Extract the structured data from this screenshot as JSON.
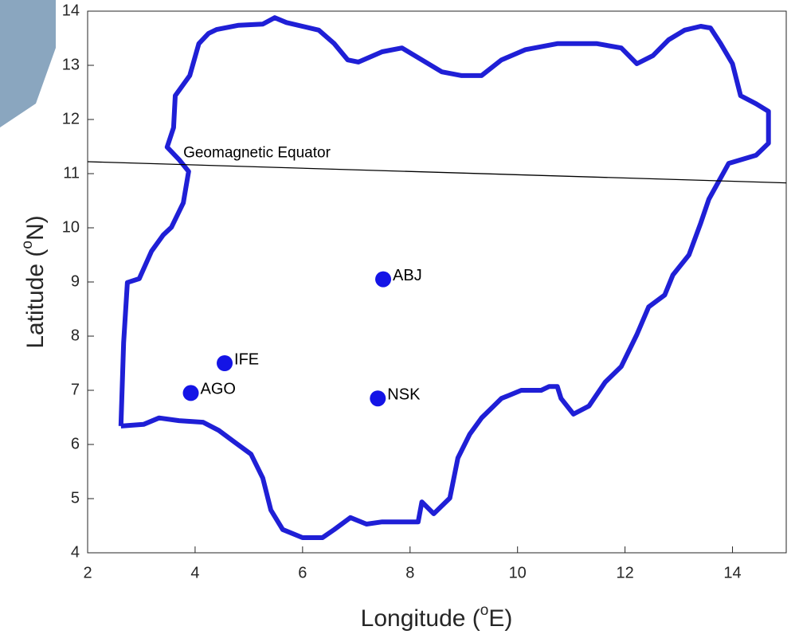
{
  "chart_data": {
    "type": "scatter",
    "xlabel": {
      "before": "Longitude (",
      "sup": "o",
      "after": "E)"
    },
    "ylabel": {
      "before": "Latitude (",
      "sup": "o",
      "after": "N)"
    },
    "xlim": [
      2,
      15
    ],
    "ylim": [
      4,
      14
    ],
    "xticks": [
      2,
      4,
      6,
      8,
      10,
      12,
      14
    ],
    "yticks": [
      4,
      5,
      6,
      7,
      8,
      9,
      10,
      11,
      12,
      13,
      14
    ],
    "series": [
      {
        "type": "line",
        "color": "#1f1fd6",
        "x": [
          2.62,
          2.67,
          2.74,
          2.96,
          3.19,
          3.41,
          3.56,
          3.78,
          3.88,
          3.7,
          3.48,
          3.6,
          3.63,
          3.9,
          4.07,
          4.25,
          4.4,
          4.81,
          5.26,
          5.48,
          5.7,
          6.3,
          6.59,
          6.84,
          7.04,
          7.48,
          7.85,
          8.22,
          8.59,
          8.96,
          9.33,
          9.7,
          10.15,
          10.74,
          11.48,
          11.93,
          12.22,
          12.52,
          12.81,
          13.11,
          13.41,
          13.59,
          13.78,
          14.0,
          14.15,
          14.44,
          14.67,
          14.67,
          14.44,
          13.93,
          13.56,
          13.41,
          13.19,
          12.89,
          12.74,
          12.44,
          12.22,
          11.93,
          11.63,
          11.33,
          11.04,
          10.81,
          10.74,
          10.59,
          10.44,
          10.07,
          9.7,
          9.33,
          9.11,
          8.89,
          8.74,
          8.44,
          8.22,
          8.15,
          7.48,
          7.19,
          6.89,
          6.59,
          6.37,
          6.0,
          5.63,
          5.41,
          5.26,
          5.04,
          4.74,
          4.44,
          4.15,
          3.7,
          3.33,
          3.04,
          2.62
        ],
        "y": [
          6.34,
          7.88,
          8.99,
          9.06,
          9.57,
          9.87,
          10.01,
          10.46,
          11.04,
          11.26,
          11.49,
          11.85,
          12.44,
          12.81,
          13.4,
          13.59,
          13.66,
          13.74,
          13.76,
          13.88,
          13.79,
          13.65,
          13.4,
          13.1,
          13.06,
          13.25,
          13.32,
          13.1,
          12.88,
          12.81,
          12.81,
          13.1,
          13.29,
          13.4,
          13.4,
          13.32,
          13.03,
          13.18,
          13.47,
          13.65,
          13.72,
          13.69,
          13.4,
          13.03,
          12.44,
          12.29,
          12.15,
          11.56,
          11.34,
          11.19,
          10.53,
          10.09,
          9.5,
          9.13,
          8.76,
          8.54,
          8.03,
          7.44,
          7.15,
          6.71,
          6.56,
          6.85,
          7.07,
          7.07,
          7.0,
          7.0,
          6.85,
          6.49,
          6.19,
          5.75,
          5.01,
          4.72,
          4.94,
          4.57,
          4.57,
          4.53,
          4.65,
          4.43,
          4.28,
          4.28,
          4.43,
          4.79,
          5.38,
          5.82,
          6.04,
          6.26,
          6.41,
          6.44,
          6.49,
          6.37,
          6.34
        ]
      },
      {
        "type": "line",
        "color": "#000000",
        "label": "Geomagnetic Equator",
        "x": [
          2,
          15
        ],
        "y": [
          11.22,
          10.83
        ]
      },
      {
        "type": "scatter",
        "color": "#1414e6",
        "labels": [
          "ABJ",
          "IFE",
          "AGO",
          "NSK"
        ],
        "x": [
          7.5,
          4.55,
          3.92,
          7.4
        ],
        "y": [
          9.05,
          7.5,
          6.95,
          6.85
        ]
      }
    ]
  }
}
